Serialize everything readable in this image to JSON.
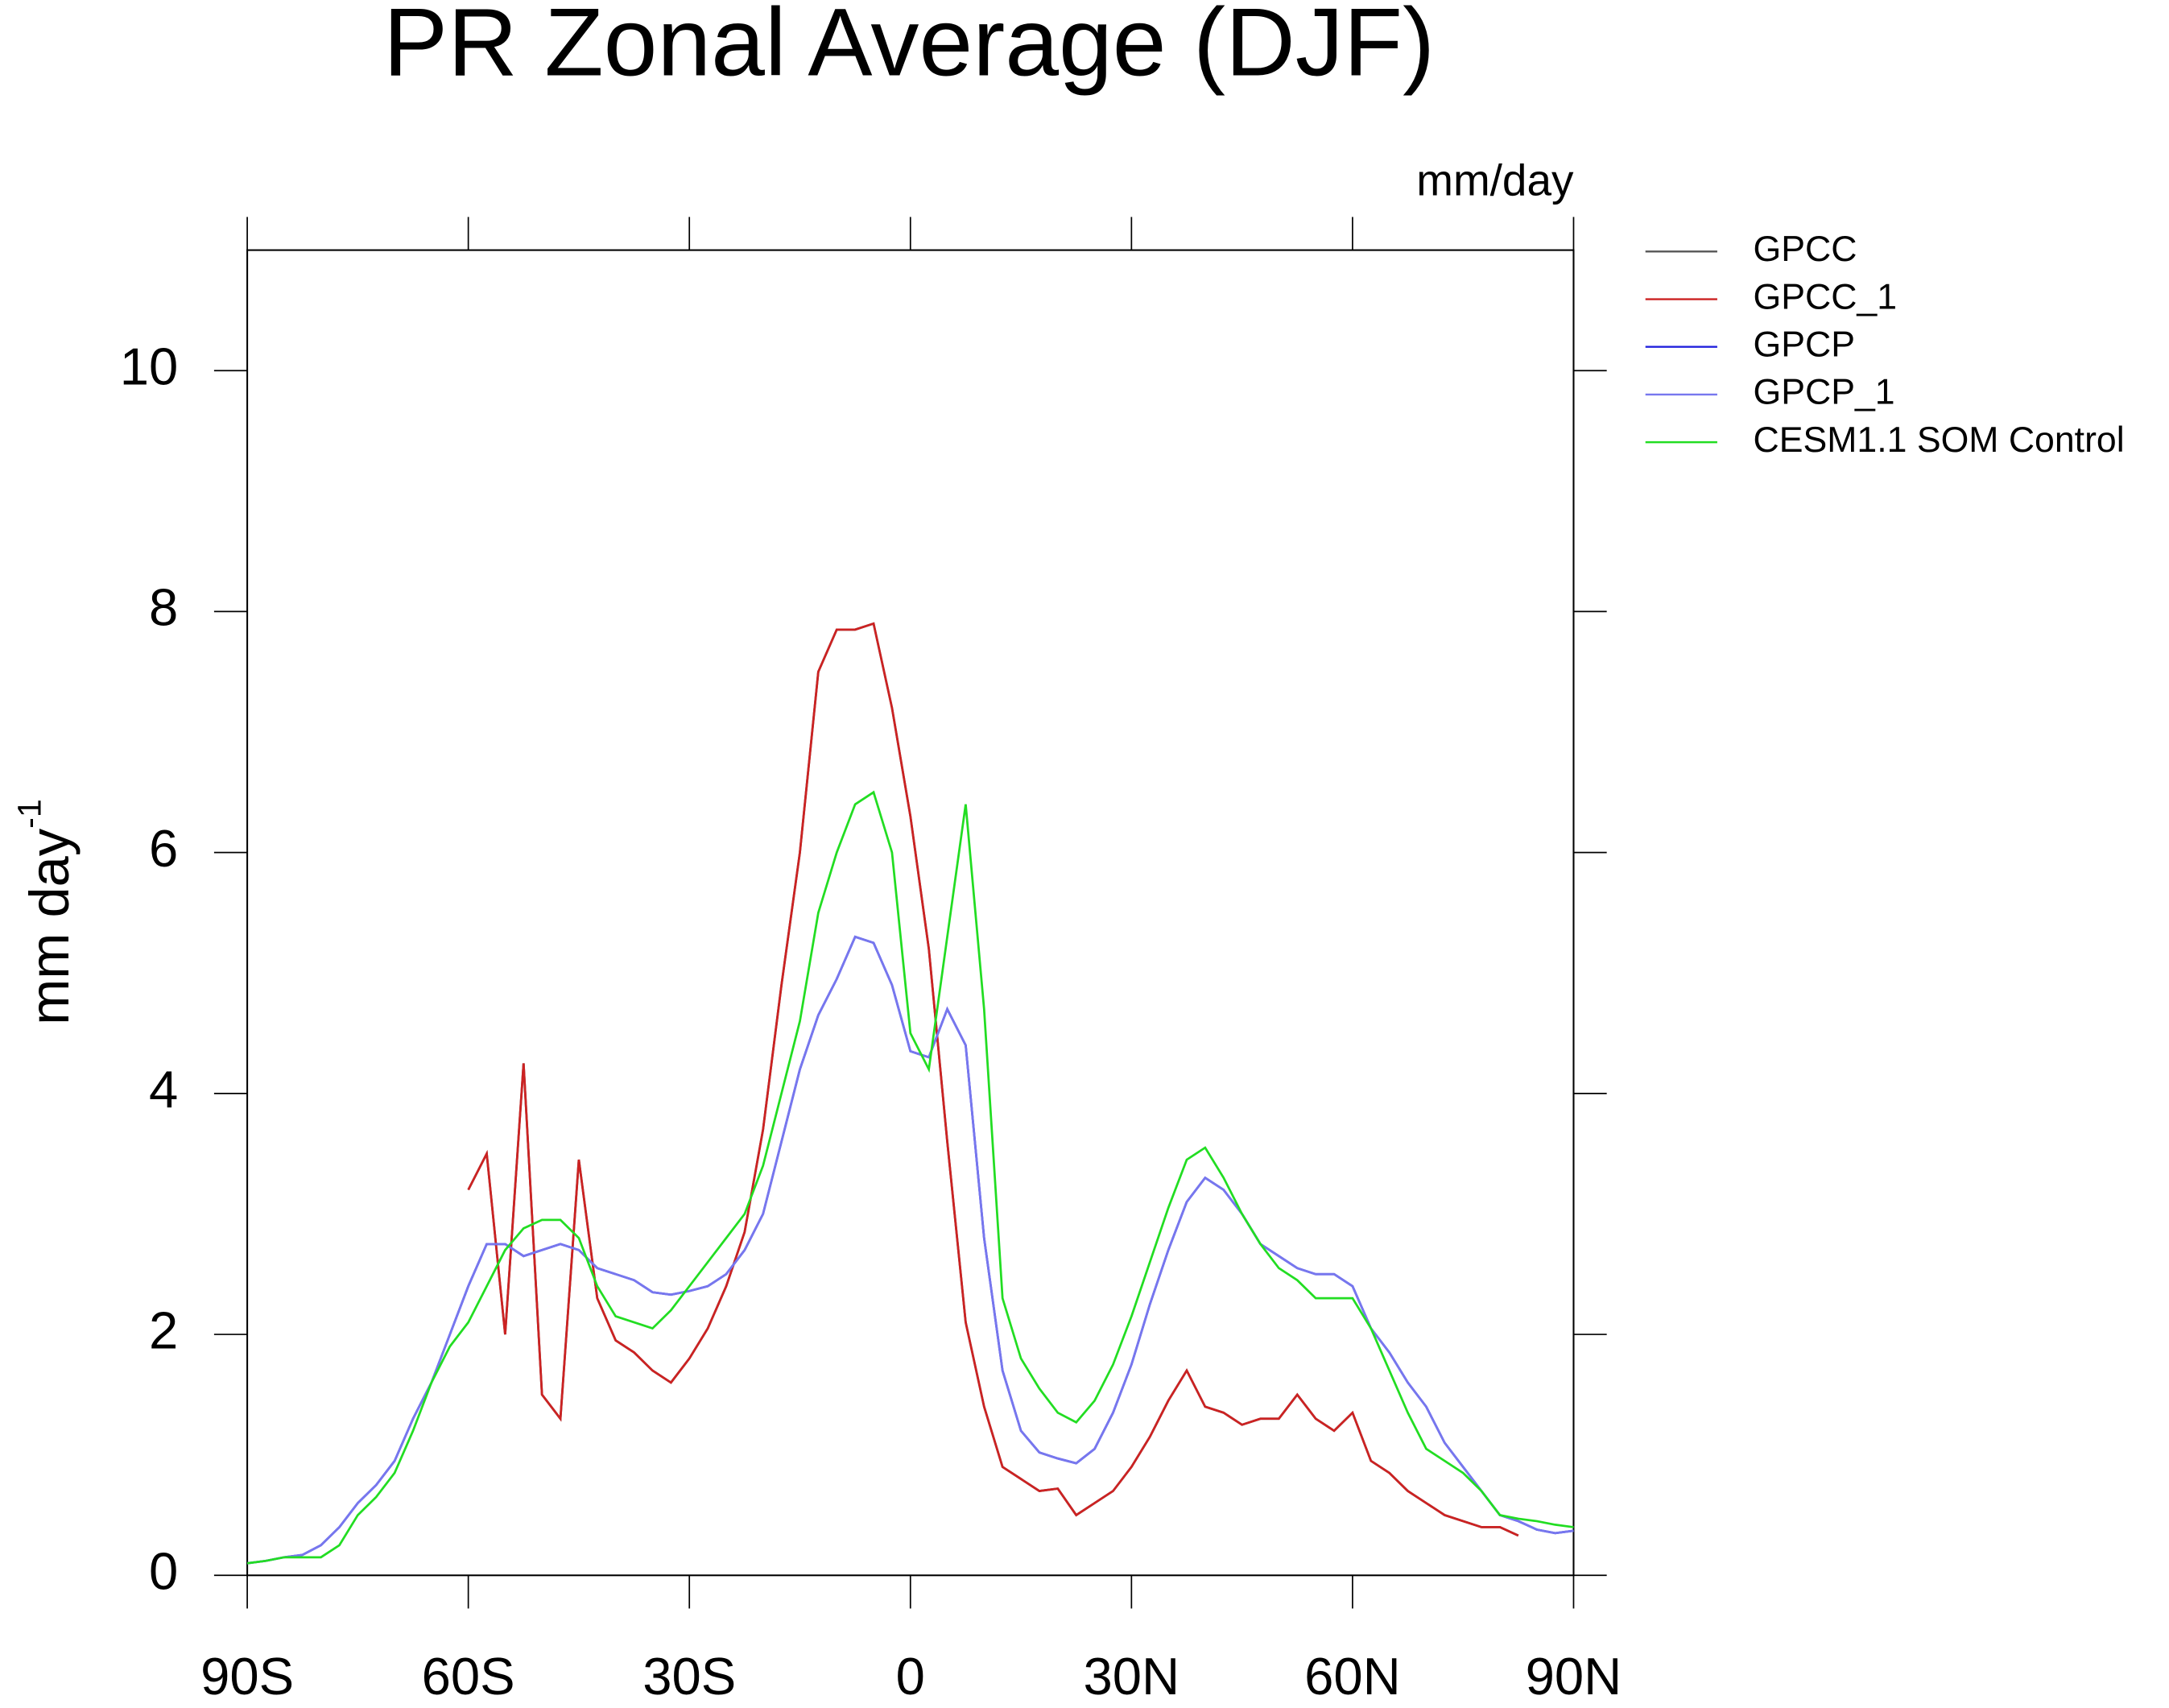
{
  "chart_data": {
    "type": "line",
    "title": "PR Zonal Average (DJF)",
    "units": "mm/day",
    "ylabel": {
      "text": "mm day",
      "superscript": "-1"
    },
    "x": [
      -90,
      -87.5,
      -85,
      -82.5,
      -80,
      -77.5,
      -75,
      -72.5,
      -70,
      -67.5,
      -65,
      -62.5,
      -60,
      -57.5,
      -55,
      -52.5,
      -50,
      -47.5,
      -45,
      -42.5,
      -40,
      -37.5,
      -35,
      -32.5,
      -30,
      -27.5,
      -25,
      -22.5,
      -20,
      -17.5,
      -15,
      -12.5,
      -10,
      -7.5,
      -5,
      -2.5,
      0,
      2.5,
      5,
      7.5,
      10,
      12.5,
      15,
      17.5,
      20,
      22.5,
      25,
      27.5,
      30,
      32.5,
      35,
      37.5,
      40,
      42.5,
      45,
      47.5,
      50,
      52.5,
      55,
      57.5,
      60,
      62.5,
      65,
      67.5,
      70,
      72.5,
      75,
      77.5,
      80,
      82.5,
      85,
      87.5,
      90
    ],
    "xlim": [
      -90,
      90
    ],
    "xticks": [
      {
        "value": -90,
        "label": "90S"
      },
      {
        "value": -60,
        "label": "60S"
      },
      {
        "value": -30,
        "label": "30S"
      },
      0,
      {
        "value": 30,
        "label": "30N"
      },
      {
        "value": 60,
        "label": "60N"
      },
      {
        "value": 90,
        "label": "90N"
      }
    ],
    "ylim": [
      0,
      11
    ],
    "yticks": [
      0,
      2,
      4,
      6,
      8,
      10
    ],
    "series": [
      {
        "name": "GPCC",
        "color": "#555555",
        "values": [
          null,
          null,
          null,
          null,
          null,
          null,
          null,
          null,
          null,
          null,
          null,
          null,
          3.2,
          3.5,
          2.0,
          4.25,
          1.5,
          1.3,
          3.45,
          2.3,
          1.95,
          1.85,
          1.7,
          1.6,
          1.8,
          2.05,
          2.4,
          2.85,
          3.7,
          4.9,
          6.0,
          7.5,
          7.85,
          7.85,
          7.9,
          7.2,
          6.3,
          5.2,
          3.6,
          2.1,
          1.4,
          0.9,
          0.8,
          0.7,
          0.72,
          0.5,
          0.6,
          0.7,
          0.9,
          1.15,
          1.45,
          1.7,
          1.4,
          1.35,
          1.25,
          1.3,
          1.3,
          1.5,
          1.3,
          1.2,
          1.35,
          0.95,
          0.85,
          0.7,
          0.6,
          0.5,
          0.45,
          0.4,
          0.4,
          0.33,
          null,
          null,
          null
        ]
      },
      {
        "name": "GPCC_1",
        "color": "#cc2222",
        "values": [
          null,
          null,
          null,
          null,
          null,
          null,
          null,
          null,
          null,
          null,
          null,
          null,
          3.2,
          3.5,
          2.0,
          4.25,
          1.5,
          1.3,
          3.45,
          2.3,
          1.95,
          1.85,
          1.7,
          1.6,
          1.8,
          2.05,
          2.4,
          2.85,
          3.7,
          4.9,
          6.0,
          7.5,
          7.85,
          7.85,
          7.9,
          7.2,
          6.3,
          5.2,
          3.6,
          2.1,
          1.4,
          0.9,
          0.8,
          0.7,
          0.72,
          0.5,
          0.6,
          0.7,
          0.9,
          1.15,
          1.45,
          1.7,
          1.4,
          1.35,
          1.25,
          1.3,
          1.3,
          1.5,
          1.3,
          1.2,
          1.35,
          0.95,
          0.85,
          0.7,
          0.6,
          0.5,
          0.45,
          0.4,
          0.4,
          0.33,
          null,
          null,
          null
        ]
      },
      {
        "name": "GPCP",
        "color": "#2222dd",
        "values": [
          0.1,
          0.12,
          0.15,
          0.17,
          0.25,
          0.4,
          0.6,
          0.75,
          0.95,
          1.3,
          1.6,
          2.0,
          2.4,
          2.75,
          2.75,
          2.65,
          2.7,
          2.75,
          2.7,
          2.55,
          2.5,
          2.45,
          2.35,
          2.33,
          2.36,
          2.4,
          2.5,
          2.7,
          3.0,
          3.6,
          4.2,
          4.65,
          4.95,
          5.3,
          5.25,
          4.9,
          4.35,
          4.3,
          4.7,
          4.4,
          2.8,
          1.7,
          1.2,
          1.02,
          0.97,
          0.93,
          1.05,
          1.35,
          1.75,
          2.25,
          2.7,
          3.1,
          3.3,
          3.2,
          3.0,
          2.75,
          2.65,
          2.55,
          2.5,
          2.5,
          2.4,
          2.05,
          1.85,
          1.6,
          1.4,
          1.1,
          0.9,
          0.7,
          0.5,
          0.45,
          0.38,
          0.35,
          0.37
        ]
      },
      {
        "name": "GPCP_1",
        "color": "#7777ee",
        "values": [
          0.1,
          0.12,
          0.15,
          0.17,
          0.25,
          0.4,
          0.6,
          0.75,
          0.95,
          1.3,
          1.6,
          2.0,
          2.4,
          2.75,
          2.75,
          2.65,
          2.7,
          2.75,
          2.7,
          2.55,
          2.5,
          2.45,
          2.35,
          2.33,
          2.36,
          2.4,
          2.5,
          2.7,
          3.0,
          3.6,
          4.2,
          4.65,
          4.95,
          5.3,
          5.25,
          4.9,
          4.35,
          4.3,
          4.7,
          4.4,
          2.8,
          1.7,
          1.2,
          1.02,
          0.97,
          0.93,
          1.05,
          1.35,
          1.75,
          2.25,
          2.7,
          3.1,
          3.3,
          3.2,
          3.0,
          2.75,
          2.65,
          2.55,
          2.5,
          2.5,
          2.4,
          2.05,
          1.85,
          1.6,
          1.4,
          1.1,
          0.9,
          0.7,
          0.5,
          0.45,
          0.38,
          0.35,
          0.37
        ]
      },
      {
        "name": "CESM1.1 SOM Control",
        "color": "#22dd22",
        "values": [
          0.1,
          0.12,
          0.15,
          0.15,
          0.15,
          0.25,
          0.5,
          0.65,
          0.85,
          1.2,
          1.6,
          1.9,
          2.1,
          2.4,
          2.7,
          2.88,
          2.95,
          2.95,
          2.8,
          2.4,
          2.15,
          2.1,
          2.05,
          2.2,
          2.4,
          2.6,
          2.8,
          3.0,
          3.4,
          4.0,
          4.6,
          5.5,
          6.0,
          6.4,
          6.5,
          6.0,
          4.5,
          4.2,
          5.3,
          6.4,
          4.7,
          2.3,
          1.8,
          1.55,
          1.35,
          1.27,
          1.45,
          1.75,
          2.15,
          2.6,
          3.05,
          3.45,
          3.55,
          3.3,
          3.0,
          2.75,
          2.55,
          2.45,
          2.3,
          2.3,
          2.3,
          2.05,
          1.7,
          1.35,
          1.05,
          0.95,
          0.85,
          0.7,
          0.5,
          0.47,
          0.45,
          0.42,
          0.4
        ]
      }
    ]
  }
}
